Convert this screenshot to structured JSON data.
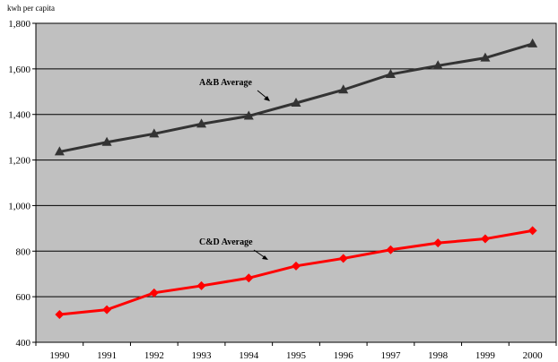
{
  "chart_data": {
    "type": "line",
    "ylabel": "kwh per capita",
    "ylim": [
      400,
      1800
    ],
    "yticks": [
      {
        "value": 400,
        "label": "400"
      },
      {
        "value": 600,
        "label": "600"
      },
      {
        "value": 800,
        "label": "800"
      },
      {
        "value": 1000,
        "label": "1,000"
      },
      {
        "value": 1200,
        "label": "1,200"
      },
      {
        "value": 1400,
        "label": "1,400"
      },
      {
        "value": 1600,
        "label": "1,600"
      },
      {
        "value": 1800,
        "label": "1,800"
      }
    ],
    "categories": [
      "1990",
      "1991",
      "1992",
      "1993",
      "1994",
      "1995",
      "1996",
      "1997",
      "1998",
      "1999",
      "2000"
    ],
    "grid": true,
    "series": [
      {
        "name": "A&B Average",
        "color": "#333333",
        "marker": "triangle",
        "values": [
          1236,
          1278,
          1315,
          1358,
          1393,
          1450,
          1508,
          1576,
          1614,
          1648,
          1710
        ]
      },
      {
        "name": "C&D Average",
        "color": "#ff0000",
        "marker": "diamond",
        "values": [
          522,
          543,
          617,
          648,
          682,
          735,
          768,
          806,
          836,
          854,
          890
        ]
      }
    ],
    "plot_background": "#c0c0c0"
  }
}
